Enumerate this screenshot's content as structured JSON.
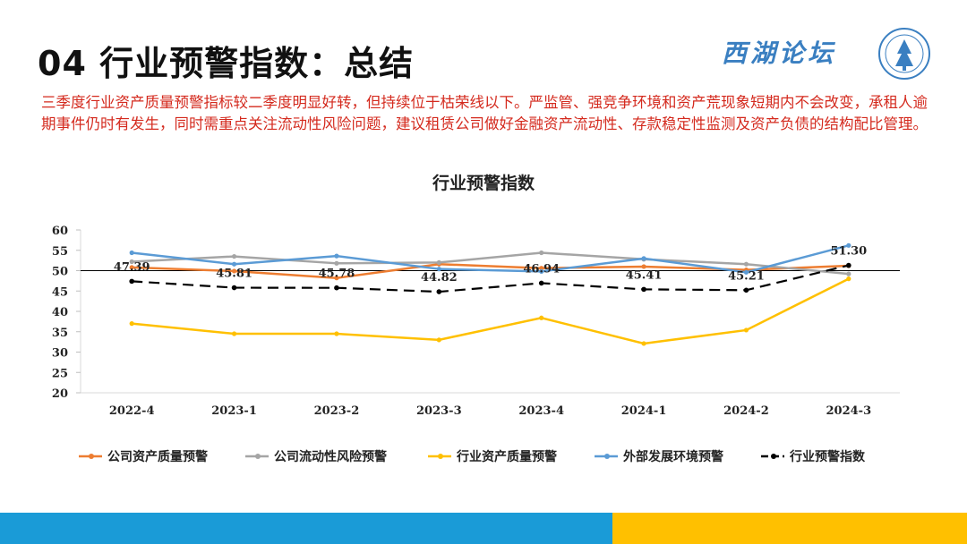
{
  "page": {
    "title": "04 行业预警指数：总结",
    "brand": "西湖论坛",
    "summary": "三季度行业资产质量预警指标较二季度明显好转，但持续位于枯荣线以下。严监管、强竞争环境和资产荒现象短期内不会改变，承租人逾期事件仍时有发生，同时需重点关注流动性风险问题，建议租赁公司做好金融资产流动性、存款稳定性监测及资产负债的结构配比管理。"
  },
  "colors": {
    "series": [
      "#ed7d31",
      "#a5a5a5",
      "#ffc000",
      "#5b9bd5",
      "#000000"
    ],
    "bottom_bar_left": "#1a9bd7",
    "bottom_bar_right": "#ffc000",
    "summary_text": "#d42a1e"
  },
  "chart_data": {
    "type": "line",
    "title": "行业预警指数",
    "categories": [
      "2022-4",
      "2023-1",
      "2023-2",
      "2023-3",
      "2023-4",
      "2024-1",
      "2024-2",
      "2024-3"
    ],
    "ylim": [
      20,
      60
    ],
    "yticks": [
      20,
      25,
      30,
      35,
      40,
      45,
      50,
      55,
      60
    ],
    "reference_line": 50,
    "grid": false,
    "legend_position": "bottom",
    "series": [
      {
        "name": "公司资产质量预警",
        "values": [
          50.8,
          49.9,
          48.2,
          51.6,
          50.6,
          51.0,
          50.2,
          51.2
        ]
      },
      {
        "name": "公司流动性风险预警",
        "values": [
          52.2,
          53.5,
          51.8,
          52.0,
          54.4,
          52.8,
          51.6,
          49.2
        ]
      },
      {
        "name": "行业资产质量预警",
        "values": [
          37.0,
          34.5,
          34.5,
          33.0,
          38.4,
          32.1,
          35.4,
          48.0
        ]
      },
      {
        "name": "外部发展环境预警",
        "values": [
          54.4,
          51.6,
          53.6,
          50.4,
          49.8,
          53.0,
          49.6,
          56.2
        ]
      },
      {
        "name": "行业预警指数",
        "values": [
          47.39,
          45.81,
          45.78,
          44.82,
          46.94,
          45.41,
          45.21,
          51.3
        ],
        "labels": [
          "47.39",
          "45.81",
          "45.78",
          "44.82",
          "46.94",
          "45.41",
          "45.21",
          "51.30"
        ],
        "dashed": true
      }
    ]
  }
}
